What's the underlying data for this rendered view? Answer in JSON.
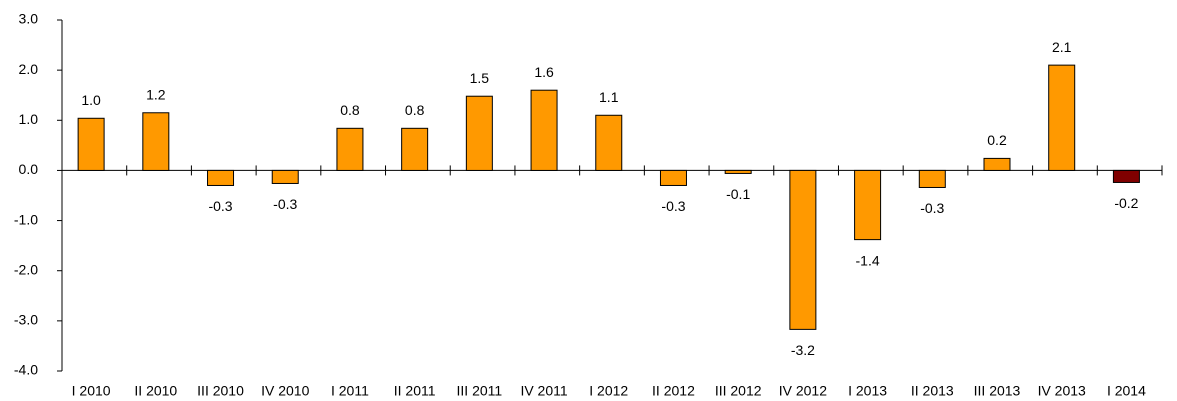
{
  "chart_data": {
    "type": "bar",
    "categories": [
      "I 2010",
      "II 2010",
      "III 2010",
      "IV 2010",
      "I 2011",
      "II 2011",
      "III 2011",
      "IV 2011",
      "I 2012",
      "II 2012",
      "III 2012",
      "IV 2012",
      "I 2013",
      "II 2013",
      "III 2013",
      "IV 2013",
      "I 2014"
    ],
    "values": [
      1.04,
      1.15,
      -0.3,
      -0.26,
      0.84,
      0.84,
      1.48,
      1.6,
      1.1,
      -0.3,
      -0.06,
      -3.17,
      -1.38,
      -0.34,
      0.24,
      2.1,
      -0.24
    ],
    "value_labels": [
      "1.0",
      "1.2",
      "-0.3",
      "-0.3",
      "0.8",
      "0.8",
      "1.5",
      "1.6",
      "1.1",
      "-0.3",
      "-0.1",
      "-3.2",
      "-1.4",
      "-0.3",
      "0.2",
      "2.1",
      "-0.2"
    ],
    "colors": [
      "#ff9900",
      "#ff9900",
      "#ff9900",
      "#ff9900",
      "#ff9900",
      "#ff9900",
      "#ff9900",
      "#ff9900",
      "#ff9900",
      "#ff9900",
      "#ff9900",
      "#ff9900",
      "#ff9900",
      "#ff9900",
      "#ff9900",
      "#ff9900",
      "#800000"
    ],
    "ylim": [
      -4,
      3
    ],
    "yticks": [
      {
        "value": -4,
        "label": "-4.0"
      },
      {
        "value": -3,
        "label": "-3.0"
      },
      {
        "value": -2,
        "label": "-2.0"
      },
      {
        "value": -1,
        "label": "-1.0"
      },
      {
        "value": 0,
        "label": "0.0"
      },
      {
        "value": 1,
        "label": "1.0"
      },
      {
        "value": 2,
        "label": "2.0"
      },
      {
        "value": 3,
        "label": "3.0"
      }
    ],
    "grid": false
  }
}
